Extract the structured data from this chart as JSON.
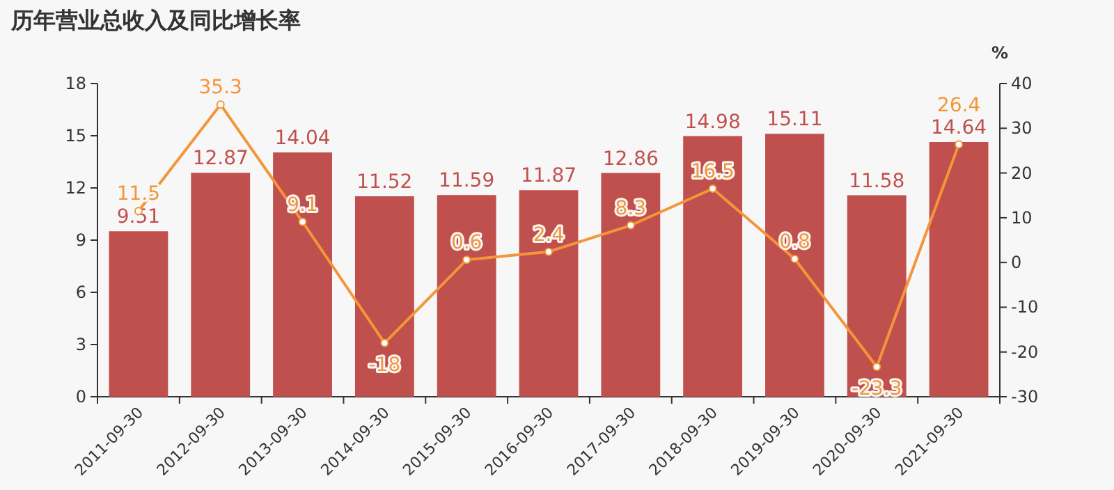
{
  "chart_data": {
    "type": "bar",
    "title": "历年营业总收入及同比增长率",
    "categories": [
      "2011-09-30",
      "2012-09-30",
      "2013-09-30",
      "2014-09-30",
      "2015-09-30",
      "2016-09-30",
      "2017-09-30",
      "2018-09-30",
      "2019-09-30",
      "2020-09-30",
      "2021-09-30"
    ],
    "series": [
      {
        "color": "#c0504d",
        "values": [
          9.51,
          12.87,
          14.04,
          11.52,
          11.59,
          11.87,
          12.86,
          14.98,
          15.11,
          11.58,
          14.64
        ]
      },
      {
        "type": "line",
        "axis": "y2",
        "color": "#f5953a",
        "marker": "circle",
        "values": [
          11.5,
          35.3,
          9.1,
          -18,
          0.6,
          2.4,
          8.3,
          16.5,
          0.8,
          -23.3,
          26.4
        ]
      }
    ],
    "ylim": [
      0,
      18
    ],
    "yticks": [
      0,
      3,
      6,
      9,
      12,
      15,
      18
    ],
    "y2lim": [
      -30,
      40
    ],
    "y2ticks": [
      -30,
      -20,
      -10,
      0,
      10,
      20,
      30,
      40
    ],
    "y2label": "%",
    "data_labels": true
  }
}
